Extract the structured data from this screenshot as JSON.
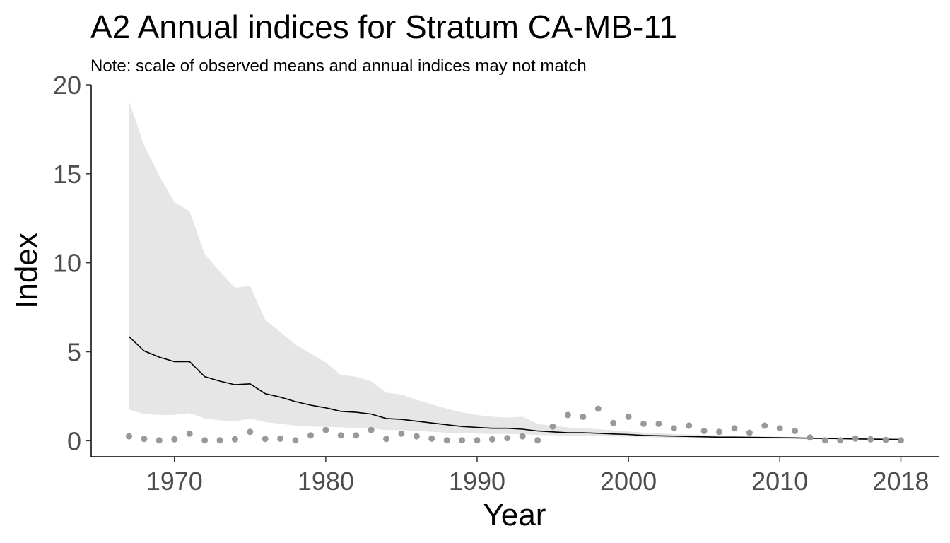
{
  "chart_data": {
    "type": "line",
    "title": "A2 Annual indices for Stratum CA-MB-11",
    "subtitle": "Note: scale of observed means and annual indices may not match",
    "xlabel": "Year",
    "ylabel": "Index",
    "xlim": [
      1964.5,
      2020.5
    ],
    "ylim": [
      -0.9,
      20
    ],
    "x_ticks": [
      1970,
      1980,
      1990,
      2000,
      2010,
      2018
    ],
    "y_ticks": [
      0,
      5,
      10,
      15,
      20
    ],
    "grid": false,
    "colors": {
      "line": "#000000",
      "ribbon": "#e6e6e6",
      "points": "#999999"
    },
    "years": [
      1967,
      1968,
      1969,
      1970,
      1971,
      1972,
      1973,
      1974,
      1975,
      1976,
      1977,
      1978,
      1979,
      1980,
      1981,
      1982,
      1983,
      1984,
      1985,
      1986,
      1987,
      1988,
      1989,
      1990,
      1991,
      1992,
      1993,
      1994,
      1995,
      1996,
      1997,
      1998,
      1999,
      2000,
      2001,
      2002,
      2003,
      2004,
      2005,
      2006,
      2007,
      2008,
      2009,
      2010,
      2011,
      2012,
      2013,
      2014,
      2015,
      2016,
      2017,
      2018
    ],
    "index": [
      5.85,
      5.05,
      4.7,
      4.45,
      4.45,
      3.6,
      3.35,
      3.15,
      3.2,
      2.65,
      2.45,
      2.2,
      2.0,
      1.85,
      1.65,
      1.6,
      1.5,
      1.25,
      1.2,
      1.1,
      1.0,
      0.9,
      0.8,
      0.75,
      0.7,
      0.7,
      0.65,
      0.55,
      0.5,
      0.45,
      0.45,
      0.42,
      0.38,
      0.35,
      0.3,
      0.28,
      0.26,
      0.24,
      0.22,
      0.2,
      0.2,
      0.19,
      0.18,
      0.17,
      0.16,
      0.14,
      0.13,
      0.12,
      0.1,
      0.09,
      0.08,
      0.07
    ],
    "lower": [
      1.75,
      1.5,
      1.45,
      1.45,
      1.55,
      1.25,
      1.15,
      1.1,
      1.25,
      1.05,
      0.95,
      0.85,
      0.8,
      0.78,
      0.75,
      0.72,
      0.7,
      0.6,
      0.6,
      0.55,
      0.5,
      0.45,
      0.42,
      0.4,
      0.38,
      0.38,
      0.36,
      0.32,
      0.3,
      0.28,
      0.28,
      0.26,
      0.24,
      0.22,
      0.2,
      0.18,
      0.17,
      0.15,
      0.14,
      0.13,
      0.13,
      0.12,
      0.11,
      0.1,
      0.1,
      0.09,
      0.08,
      0.07,
      0.06,
      0.05,
      0.05,
      0.04
    ],
    "upper": [
      19.1,
      16.6,
      14.9,
      13.4,
      12.9,
      10.5,
      9.5,
      8.6,
      8.7,
      6.8,
      6.1,
      5.4,
      4.9,
      4.4,
      3.7,
      3.6,
      3.35,
      2.7,
      2.6,
      2.3,
      2.05,
      1.8,
      1.6,
      1.45,
      1.35,
      1.3,
      1.35,
      0.95,
      0.85,
      0.75,
      0.7,
      0.65,
      0.58,
      0.52,
      0.46,
      0.42,
      0.38,
      0.35,
      0.32,
      0.3,
      0.28,
      0.26,
      0.24,
      0.22,
      0.21,
      0.19,
      0.17,
      0.16,
      0.14,
      0.13,
      0.12,
      0.11
    ],
    "observed_means": [
      0.25,
      0.1,
      0.02,
      0.08,
      0.4,
      0.02,
      0.02,
      0.08,
      0.5,
      0.1,
      0.12,
      0.02,
      0.3,
      0.6,
      0.3,
      0.3,
      0.6,
      0.1,
      0.4,
      0.25,
      0.12,
      0.02,
      0.02,
      0.02,
      0.08,
      0.15,
      0.25,
      0.02,
      0.8,
      1.45,
      1.35,
      1.8,
      1.0,
      1.35,
      0.95,
      0.95,
      0.7,
      0.85,
      0.55,
      0.5,
      0.7,
      0.45,
      0.85,
      0.7,
      0.55,
      0.18,
      0.02,
      0.02,
      0.12,
      0.08,
      0.05,
      0.02
    ]
  }
}
